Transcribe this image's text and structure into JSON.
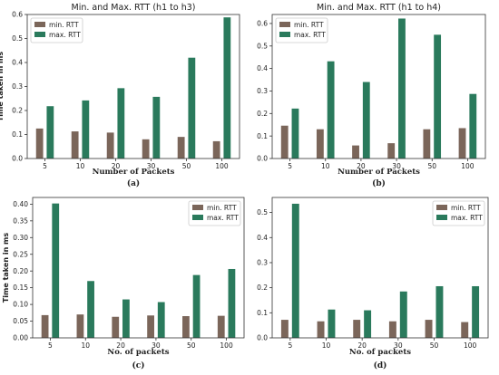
{
  "colors": {
    "min": "#7b665a",
    "max": "#2a7a5c"
  },
  "chart_data": [
    {
      "type": "bar",
      "title": "Min. and Max. RTT (h1 to h3)",
      "xlabel": "Number of Packets",
      "ylabel": "Time taken in ms",
      "caption": "(a)",
      "legend": "top-left",
      "categories": [
        "5",
        "10",
        "20",
        "30",
        "50",
        "100"
      ],
      "ylim": [
        0,
        0.6
      ],
      "yticks": [
        "0.0",
        "0.1",
        "0.2",
        "0.3",
        "0.4",
        "0.5",
        "0.6"
      ],
      "yticks_values": [
        0,
        0.1,
        0.2,
        0.3,
        0.4,
        0.5,
        0.6
      ],
      "series": [
        {
          "name": "min. RTT",
          "values": [
            0.125,
            0.113,
            0.108,
            0.08,
            0.09,
            0.072
          ]
        },
        {
          "name": "max. RTT",
          "values": [
            0.218,
            0.242,
            0.293,
            0.257,
            0.42,
            0.588
          ]
        }
      ]
    },
    {
      "type": "bar",
      "title": "Min. and Max. RTT (h1 to h4)",
      "xlabel": "Number of Packets",
      "ylabel": "",
      "caption": "(b)",
      "legend": "top-left",
      "categories": [
        "5",
        "10",
        "20",
        "30",
        "50",
        "100"
      ],
      "ylim": [
        0,
        0.64
      ],
      "yticks": [
        "0.0",
        "0.1",
        "0.2",
        "0.3",
        "0.4",
        "0.5",
        "0.6"
      ],
      "yticks_values": [
        0,
        0.1,
        0.2,
        0.3,
        0.4,
        0.5,
        0.6
      ],
      "series": [
        {
          "name": "min. RTT",
          "values": [
            0.146,
            0.13,
            0.058,
            0.068,
            0.13,
            0.135
          ]
        },
        {
          "name": "max. RTT",
          "values": [
            0.222,
            0.432,
            0.34,
            0.622,
            0.55,
            0.287
          ]
        }
      ]
    },
    {
      "type": "bar",
      "title": "",
      "xlabel": "No. of packets",
      "ylabel": "Time taken in ms",
      "caption": "(c)",
      "legend": "top-right",
      "categories": [
        "5",
        "10",
        "20",
        "30",
        "50",
        "100"
      ],
      "ylim": [
        0,
        0.42
      ],
      "yticks": [
        "0.00",
        "0.05",
        "0.10",
        "0.15",
        "0.20",
        "0.25",
        "0.30",
        "0.35",
        "0.40"
      ],
      "yticks_values": [
        0,
        0.05,
        0.1,
        0.15,
        0.2,
        0.25,
        0.3,
        0.35,
        0.4
      ],
      "series": [
        {
          "name": "min. RTT",
          "values": [
            0.068,
            0.07,
            0.063,
            0.067,
            0.065,
            0.066
          ]
        },
        {
          "name": "max. RTT",
          "values": [
            0.402,
            0.17,
            0.115,
            0.107,
            0.188,
            0.206
          ]
        }
      ]
    },
    {
      "type": "bar",
      "title": "",
      "xlabel": "No. of packets",
      "ylabel": "",
      "caption": "(d)",
      "legend": "top-right",
      "categories": [
        "5",
        "10",
        "20",
        "30",
        "50",
        "100"
      ],
      "ylim": [
        0,
        0.56
      ],
      "yticks": [
        "0.0",
        "0.1",
        "0.2",
        "0.3",
        "0.4",
        "0.5"
      ],
      "yticks_values": [
        0,
        0.1,
        0.2,
        0.3,
        0.4,
        0.5
      ],
      "series": [
        {
          "name": "min. RTT",
          "values": [
            0.072,
            0.066,
            0.072,
            0.066,
            0.072,
            0.063
          ]
        },
        {
          "name": "max. RTT",
          "values": [
            0.535,
            0.113,
            0.11,
            0.185,
            0.206,
            0.206
          ]
        }
      ]
    }
  ]
}
